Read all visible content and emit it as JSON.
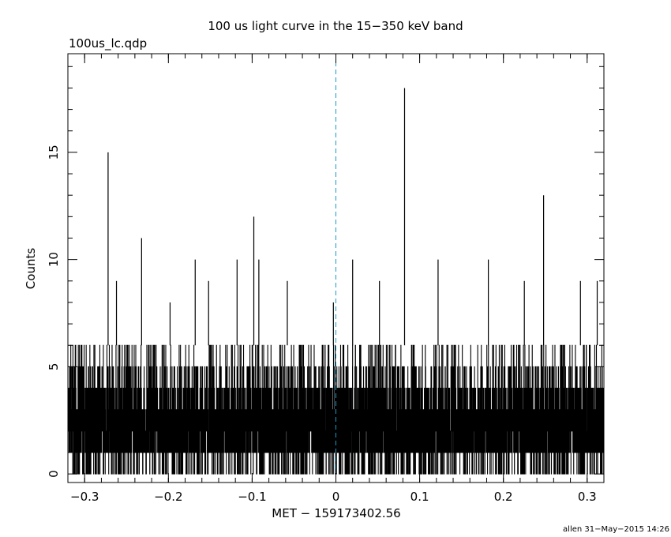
{
  "chart_data": {
    "type": "line",
    "title": "100 us light curve in the 15−350 keV band",
    "subtitle": "100us_lc.qdp",
    "xlabel": "MET − 159173402.56",
    "ylabel": "Counts",
    "footer": "allen 31−May−2015 14:26",
    "xlim": [
      -0.32,
      0.32
    ],
    "ylim": [
      -0.4,
      19.6
    ],
    "x_ticks": [
      -0.3,
      -0.2,
      -0.1,
      0,
      0.1,
      0.2,
      0.3
    ],
    "x_tick_labels": [
      "−0.3",
      "−0.2",
      "−0.1",
      "0",
      "0.1",
      "0.2",
      "0.3"
    ],
    "y_ticks": [
      0,
      5,
      10,
      15
    ],
    "y_tick_labels": [
      "0",
      "5",
      "10",
      "15"
    ],
    "grid": false,
    "bin_width": 0.0001,
    "reference_line": {
      "x": 0,
      "style": "dashed",
      "color": "#1a9ac6"
    },
    "series": [
      {
        "color": "#000000",
        "baseline_range": [
          0,
          6
        ],
        "spikes": [
          {
            "x": -0.272,
            "y": 15
          },
          {
            "x": -0.262,
            "y": 9
          },
          {
            "x": -0.232,
            "y": 11
          },
          {
            "x": -0.198,
            "y": 8
          },
          {
            "x": -0.168,
            "y": 10
          },
          {
            "x": -0.152,
            "y": 9
          },
          {
            "x": -0.118,
            "y": 10
          },
          {
            "x": -0.098,
            "y": 12
          },
          {
            "x": -0.092,
            "y": 10
          },
          {
            "x": -0.058,
            "y": 9
          },
          {
            "x": -0.003,
            "y": 8
          },
          {
            "x": 0.02,
            "y": 10
          },
          {
            "x": 0.052,
            "y": 9
          },
          {
            "x": 0.082,
            "y": 18
          },
          {
            "x": 0.122,
            "y": 10
          },
          {
            "x": 0.182,
            "y": 10
          },
          {
            "x": 0.225,
            "y": 9
          },
          {
            "x": 0.248,
            "y": 13
          },
          {
            "x": 0.292,
            "y": 9
          },
          {
            "x": 0.312,
            "y": 9
          }
        ]
      }
    ]
  }
}
